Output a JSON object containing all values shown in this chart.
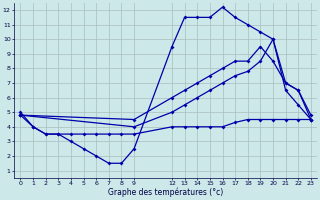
{
  "xlabel": "Graphe des températures (°c)",
  "bg_color": "#cce8e8",
  "grid_color": "#aabcbc",
  "line_color": "#0000aa",
  "xlim": [
    -0.5,
    23.5
  ],
  "ylim": [
    0.5,
    12.5
  ],
  "xticks": [
    0,
    1,
    2,
    3,
    4,
    5,
    6,
    7,
    8,
    9,
    12,
    13,
    14,
    15,
    16,
    17,
    18,
    19,
    20,
    21,
    22,
    23
  ],
  "yticks": [
    1,
    2,
    3,
    4,
    5,
    6,
    7,
    8,
    9,
    10,
    11,
    12
  ],
  "line1_x": [
    0,
    1,
    2,
    3,
    4,
    5,
    6,
    7,
    8,
    9,
    12,
    13,
    14,
    15,
    16,
    17,
    18,
    19,
    20,
    21,
    22,
    23
  ],
  "line1_y": [
    5,
    4,
    3.5,
    3.5,
    3,
    2.5,
    2,
    1.5,
    1.5,
    2.5,
    9.5,
    11.5,
    11.5,
    11.5,
    12.2,
    11.5,
    11,
    10.5,
    10,
    6.5,
    5.5,
    4.5
  ],
  "line2_x": [
    0,
    1,
    2,
    3,
    4,
    5,
    6,
    7,
    8,
    9,
    12,
    13,
    14,
    15,
    16,
    17,
    18,
    19,
    20,
    21,
    22,
    23
  ],
  "line2_y": [
    4.8,
    4,
    3.5,
    3.5,
    3.5,
    3.5,
    3.5,
    3.5,
    3.5,
    3.5,
    4,
    4,
    4,
    4,
    4,
    4.3,
    4.5,
    4.5,
    4.5,
    4.5,
    4.5,
    4.5
  ],
  "line3_x": [
    0,
    9,
    12,
    13,
    14,
    15,
    16,
    17,
    18,
    19,
    20,
    21,
    22,
    23
  ],
  "line3_y": [
    4.8,
    4.5,
    6,
    6.5,
    7,
    7.5,
    8,
    8.5,
    8.5,
    9.5,
    8.5,
    7,
    6.5,
    4.5
  ],
  "line4_x": [
    0,
    9,
    12,
    13,
    14,
    15,
    16,
    17,
    18,
    19,
    20,
    21,
    22,
    23
  ],
  "line4_y": [
    4.8,
    4,
    5,
    5.5,
    6,
    6.5,
    7,
    7.5,
    7.8,
    8.5,
    10,
    7,
    6.5,
    4.8
  ]
}
